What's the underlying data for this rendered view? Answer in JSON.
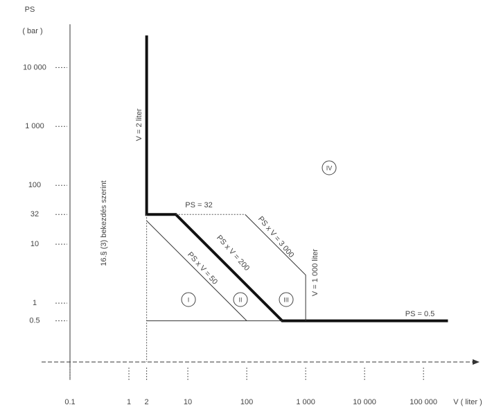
{
  "chart_data": {
    "type": "line",
    "x_label": "V ( liter )",
    "y_label": "PS",
    "y_unit": "( bar )",
    "log_x": true,
    "log_y": true,
    "xlim": [
      0.1,
      700000
    ],
    "ylim": [
      0.1,
      50000
    ],
    "xticks": [
      0.1,
      1,
      2,
      10,
      100,
      {
        "value": 1000,
        "label": "1 000"
      },
      {
        "value": 10000,
        "label": "10 000"
      },
      {
        "value": 100000,
        "label": "100 000"
      }
    ],
    "yticks": [
      {
        "value": 10000,
        "label": "10 000"
      },
      {
        "value": 1000,
        "label": "1 000"
      },
      100,
      32,
      10,
      1,
      0.5
    ],
    "series": [
      {
        "color": "#111111",
        "width": 4,
        "dash": "solid",
        "x": [
          2,
          2,
          6.25,
          400,
          260000
        ],
        "values": [
          35000,
          32,
          32,
          0.5,
          0.5
        ]
      },
      {
        "color": "#333333",
        "width": 1,
        "dash": "solid",
        "x": [
          2,
          100
        ],
        "values": [
          25,
          0.5
        ]
      },
      {
        "color": "#333333",
        "width": 1,
        "dash": "solid",
        "x": [
          93.75,
          1000,
          1000
        ],
        "values": [
          32,
          3,
          0.5
        ]
      },
      {
        "color": "#333333",
        "width": 1,
        "dash": "solid",
        "x": [
          2,
          400
        ],
        "values": [
          0.5,
          0.5
        ]
      },
      {
        "color": "#555555",
        "width": 1,
        "dash": "dotted",
        "x": [
          6.25,
          93.75
        ],
        "values": [
          32,
          32
        ]
      },
      {
        "color": "#555555",
        "width": 1,
        "dash": "dotted",
        "x": [
          2,
          2
        ],
        "values": [
          32,
          0.1
        ]
      }
    ],
    "annotations": [
      "PS = 32",
      "PS x V = 3 000",
      "PS x V = 200",
      "PS x V = 50",
      "V = 1 000 liter",
      "PS = 0.5",
      "V = 2 liter",
      "16.§ (3) bekezdés szerint"
    ],
    "region_labels": [
      "I",
      "II",
      "III",
      "IV"
    ]
  }
}
